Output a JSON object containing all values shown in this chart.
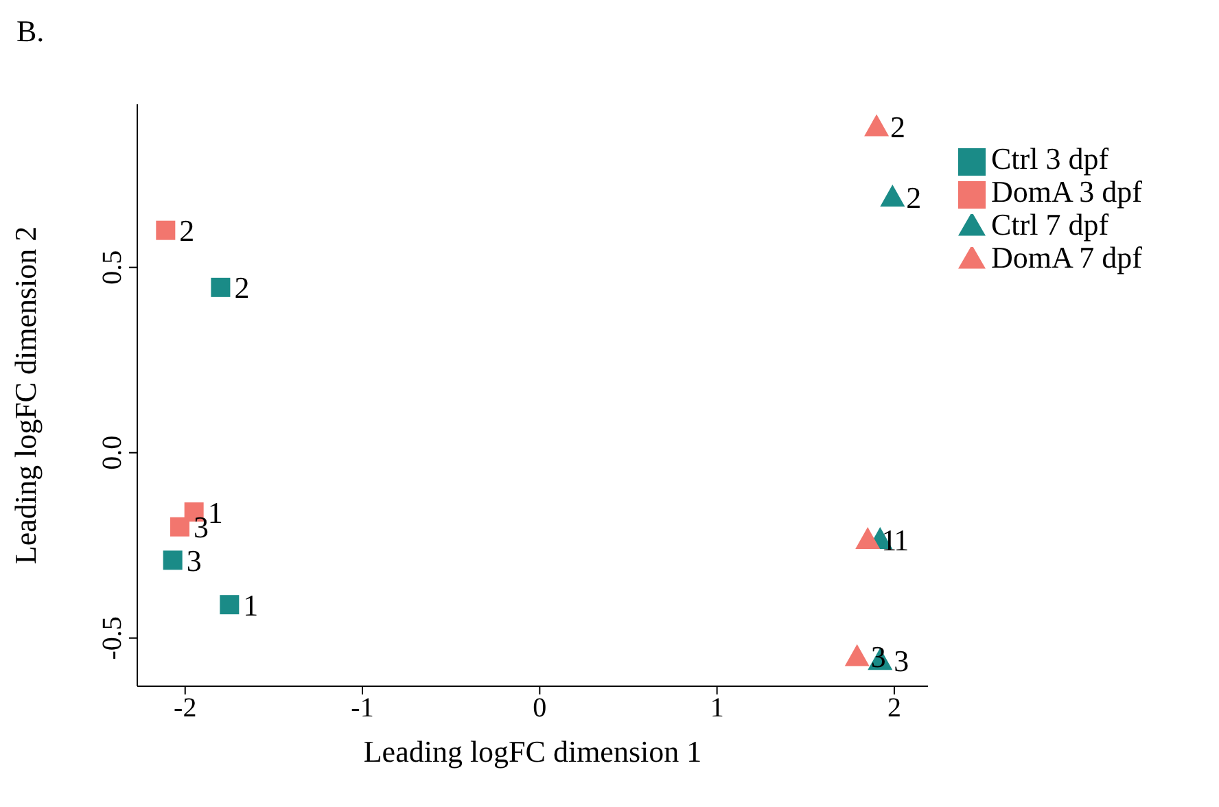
{
  "chart_data": {
    "type": "scatter",
    "title": "B.",
    "xlabel": "Leading logFC dimension 1",
    "ylabel": "Leading logFC dimension 2",
    "xlim": [
      -2.27,
      2.19
    ],
    "ylim": [
      -0.63,
      0.94
    ],
    "xticks": [
      -2,
      -1,
      0,
      1,
      2
    ],
    "yticks": [
      {
        "value": -0.5,
        "label": "-0.5"
      },
      {
        "value": 0,
        "label": "0.0"
      },
      {
        "value": 0.5,
        "label": "0.5"
      }
    ],
    "grid": false,
    "legend": "top right",
    "series": [
      {
        "name": "Ctrl 3 dpf",
        "color": "#1a8b87",
        "marker": "square",
        "x": [
          -1.8,
          -2.07,
          -1.75
        ],
        "values": [
          0.446,
          -0.29,
          -0.41
        ]
      },
      {
        "name": "DomA 3 dpf",
        "color": "#f2766e",
        "marker": "square",
        "x": [
          -2.11,
          -1.95,
          -2.03
        ],
        "values": [
          0.6,
          -0.16,
          -0.2
        ]
      },
      {
        "name": "Ctrl 7 dpf",
        "color": "#1a8b87",
        "marker": "triangle",
        "x": [
          1.99,
          1.92,
          1.92
        ],
        "values": [
          0.69,
          -0.234,
          -0.56
        ]
      },
      {
        "name": "DomA 7 dpf",
        "color": "#f2766e",
        "marker": "triangle",
        "x": [
          1.9,
          1.85,
          1.79
        ],
        "values": [
          0.88,
          -0.234,
          -0.55
        ]
      }
    ],
    "annotations": [
      {
        "text": "2",
        "x": -1.8,
        "y": 0.446
      },
      {
        "text": "3",
        "x": -2.07,
        "y": -0.29
      },
      {
        "text": "1",
        "x": -1.75,
        "y": -0.41
      },
      {
        "text": "2",
        "x": -2.11,
        "y": 0.6
      },
      {
        "text": "1",
        "x": -1.95,
        "y": -0.16
      },
      {
        "text": "3",
        "x": -2.03,
        "y": -0.2
      },
      {
        "text": "2",
        "x": 1.99,
        "y": 0.69
      },
      {
        "text": "1",
        "x": 1.92,
        "y": -0.234
      },
      {
        "text": "3",
        "x": 1.92,
        "y": -0.56
      },
      {
        "text": "2",
        "x": 1.9,
        "y": 0.88
      },
      {
        "text": "1",
        "x": 1.85,
        "y": -0.234
      },
      {
        "text": "3",
        "x": 1.79,
        "y": -0.55
      }
    ]
  }
}
